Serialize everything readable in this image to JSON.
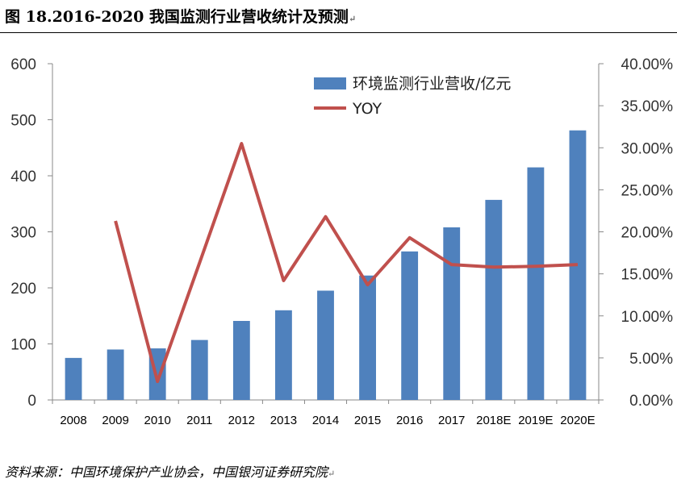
{
  "caption": "图 18.2016-2020 我国监测行业营收统计及预测",
  "source": "资料来源：中国环境保护产业协会，中国银河证券研究院",
  "chart_data": {
    "type": "bar",
    "categories": [
      "2008",
      "2009",
      "2010",
      "2011",
      "2012",
      "2013",
      "2014",
      "2015",
      "2016",
      "2017",
      "2018E",
      "2019E",
      "2020E"
    ],
    "series": [
      {
        "name": "环境监测行业营收/亿元",
        "kind": "bar",
        "axis": "left",
        "color": "#4F81BD",
        "values": [
          75,
          90,
          92,
          107,
          141,
          160,
          195,
          222,
          265,
          308,
          357,
          415,
          481
        ]
      },
      {
        "name": "YOY",
        "kind": "line",
        "axis": "right",
        "color": "#C0504D",
        "values": [
          null,
          0.213,
          0.022,
          0.163,
          0.305,
          0.142,
          0.218,
          0.137,
          0.193,
          0.161,
          0.158,
          0.159,
          0.161
        ]
      }
    ],
    "y_left": {
      "min": 0,
      "max": 600,
      "ticks": [
        0,
        100,
        200,
        300,
        400,
        500,
        600
      ],
      "tick_labels": [
        "0",
        "100",
        "200",
        "300",
        "400",
        "500",
        "600"
      ]
    },
    "y_right": {
      "min": 0,
      "max": 0.4,
      "ticks": [
        0,
        0.05,
        0.1,
        0.15,
        0.2,
        0.25,
        0.3,
        0.35,
        0.4
      ],
      "tick_labels": [
        "0.00%",
        "5.00%",
        "10.00%",
        "15.00%",
        "20.00%",
        "25.00%",
        "30.00%",
        "35.00%",
        "40.00%"
      ]
    },
    "legend_position": "top-right",
    "grid": false
  }
}
